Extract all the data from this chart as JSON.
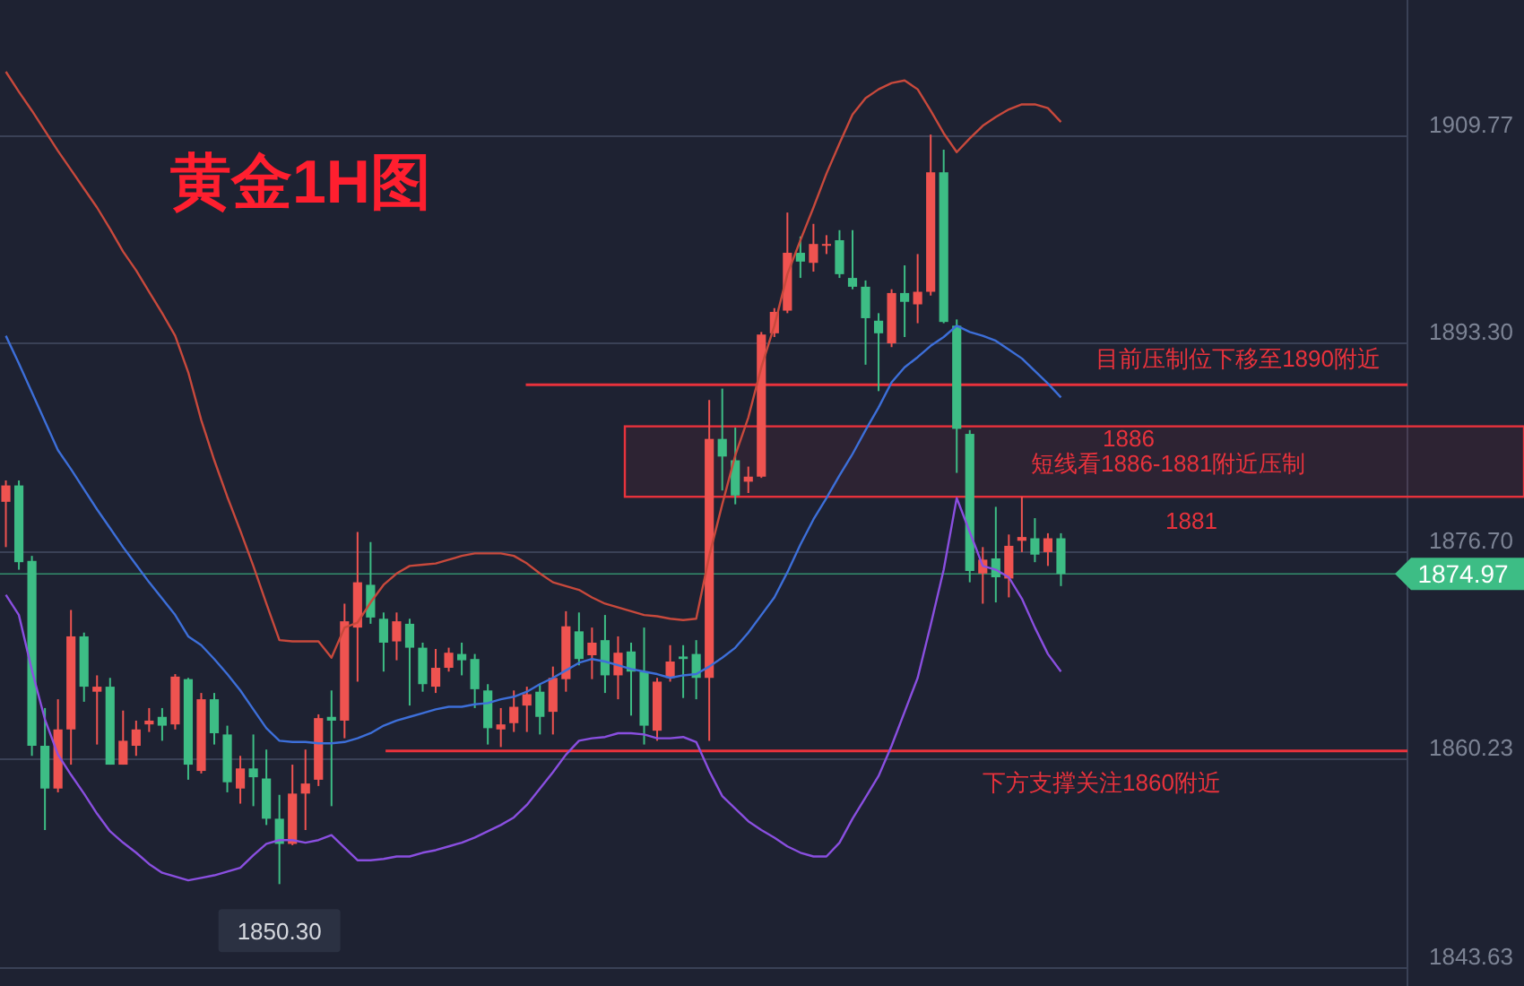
{
  "chart_data": {
    "type": "candlestick",
    "title": "黄金1H图",
    "categories": [
      null,
      null,
      null,
      null,
      null,
      null,
      null,
      null,
      null,
      null,
      null,
      null,
      null,
      null,
      null,
      null,
      null,
      null,
      null,
      null,
      null,
      null,
      null,
      null,
      null,
      null,
      null,
      null,
      null,
      null,
      null,
      null,
      null,
      null,
      null,
      null,
      null,
      null,
      null,
      null,
      null,
      null,
      null,
      null,
      null,
      null,
      null,
      null,
      null,
      null,
      null,
      null,
      null,
      null,
      null,
      null,
      null,
      null,
      null,
      null,
      null,
      null,
      null,
      null,
      null,
      null,
      null,
      null,
      null,
      null,
      null,
      null,
      null,
      null,
      null,
      null,
      null,
      null,
      null,
      null,
      null,
      null
    ],
    "ohlc": [
      [
        1880.7,
        1882.4,
        1877.1,
        1882.0
      ],
      [
        1882.0,
        1882.4,
        1875.3,
        1875.9
      ],
      [
        1876.0,
        1876.4,
        1860.5,
        1861.3
      ],
      [
        1861.3,
        1864.3,
        1854.6,
        1857.9
      ],
      [
        1857.9,
        1865.0,
        1857.6,
        1862.6
      ],
      [
        1862.6,
        1872.1,
        1859.8,
        1870.0
      ],
      [
        1870.0,
        1870.3,
        1864.8,
        1866.0
      ],
      [
        1865.6,
        1866.9,
        1861.4,
        1866.0
      ],
      [
        1866.0,
        1866.7,
        1859.8,
        1859.8
      ],
      [
        1859.8,
        1864.1,
        1859.8,
        1861.7
      ],
      [
        1861.3,
        1863.3,
        1860.5,
        1862.6
      ],
      [
        1863.0,
        1864.3,
        1862.4,
        1863.3
      ],
      [
        1863.6,
        1864.3,
        1861.7,
        1862.9
      ],
      [
        1863.0,
        1867.0,
        1862.6,
        1866.8
      ],
      [
        1866.6,
        1866.7,
        1858.6,
        1859.8
      ],
      [
        1859.3,
        1865.5,
        1859.1,
        1865.0
      ],
      [
        1865.0,
        1865.5,
        1861.4,
        1862.3
      ],
      [
        1862.2,
        1862.9,
        1857.6,
        1858.4
      ],
      [
        1857.9,
        1860.5,
        1856.7,
        1859.5
      ],
      [
        1859.5,
        1862.2,
        1856.5,
        1858.8
      ],
      [
        1858.7,
        1861.0,
        1855.0,
        1855.5
      ],
      [
        1855.5,
        1857.4,
        1850.3,
        1853.5
      ],
      [
        1853.5,
        1859.8,
        1853.4,
        1857.5
      ],
      [
        1857.5,
        1861.0,
        1854.6,
        1858.3
      ],
      [
        1858.6,
        1863.8,
        1858.1,
        1863.5
      ],
      [
        1863.6,
        1865.7,
        1856.5,
        1863.3
      ],
      [
        1863.3,
        1872.6,
        1861.9,
        1871.2
      ],
      [
        1870.7,
        1878.3,
        1866.4,
        1874.3
      ],
      [
        1874.1,
        1877.5,
        1871.0,
        1871.5
      ],
      [
        1871.4,
        1871.9,
        1867.2,
        1869.5
      ],
      [
        1869.6,
        1871.9,
        1868.1,
        1871.2
      ],
      [
        1871.0,
        1871.4,
        1864.5,
        1869.1
      ],
      [
        1869.1,
        1869.5,
        1865.6,
        1866.2
      ],
      [
        1866.0,
        1869.0,
        1865.5,
        1867.5
      ],
      [
        1867.5,
        1869.1,
        1867.2,
        1868.7
      ],
      [
        1868.6,
        1869.5,
        1866.9,
        1868.1
      ],
      [
        1868.2,
        1868.6,
        1864.3,
        1865.8
      ],
      [
        1865.7,
        1866.2,
        1861.4,
        1862.7
      ],
      [
        1862.6,
        1864.3,
        1861.2,
        1863.0
      ],
      [
        1863.1,
        1865.7,
        1862.4,
        1864.4
      ],
      [
        1864.5,
        1866.0,
        1862.4,
        1865.4
      ],
      [
        1865.6,
        1866.2,
        1862.2,
        1863.6
      ],
      [
        1864.0,
        1867.6,
        1862.2,
        1866.7
      ],
      [
        1866.6,
        1872.0,
        1865.6,
        1870.8
      ],
      [
        1870.4,
        1871.9,
        1867.7,
        1868.2
      ],
      [
        1868.5,
        1870.7,
        1866.6,
        1869.5
      ],
      [
        1869.7,
        1871.7,
        1865.5,
        1866.9
      ],
      [
        1866.9,
        1870.0,
        1865.0,
        1868.7
      ],
      [
        1868.8,
        1869.5,
        1863.7,
        1867.2
      ],
      [
        1867.2,
        1870.7,
        1861.4,
        1862.9
      ],
      [
        1862.5,
        1866.7,
        1861.7,
        1866.4
      ],
      [
        1866.7,
        1869.3,
        1866.4,
        1868.0
      ],
      [
        1868.4,
        1869.3,
        1865.1,
        1868.2
      ],
      [
        1868.6,
        1869.7,
        1865.0,
        1866.7
      ],
      [
        1866.7,
        1888.8,
        1861.7,
        1885.7
      ],
      [
        1885.7,
        1889.7,
        1881.6,
        1884.3
      ],
      [
        1884.0,
        1886.6,
        1880.5,
        1881.2
      ],
      [
        1882.3,
        1883.5,
        1881.4,
        1882.7
      ],
      [
        1882.7,
        1894.2,
        1882.6,
        1894.0
      ],
      [
        1894.1,
        1896.1,
        1893.8,
        1895.8
      ],
      [
        1895.9,
        1903.7,
        1895.7,
        1900.5
      ],
      [
        1900.5,
        1901.8,
        1898.5,
        1899.8
      ],
      [
        1899.7,
        1902.8,
        1899.0,
        1901.2
      ],
      [
        1901.1,
        1901.9,
        1900.4,
        1901.2
      ],
      [
        1901.5,
        1902.3,
        1898.5,
        1898.8
      ],
      [
        1898.5,
        1902.3,
        1897.6,
        1897.8
      ],
      [
        1897.8,
        1898.3,
        1891.6,
        1895.3
      ],
      [
        1895.1,
        1895.7,
        1889.5,
        1894.1
      ],
      [
        1893.3,
        1897.6,
        1893.0,
        1897.3
      ],
      [
        1897.3,
        1899.5,
        1893.8,
        1896.6
      ],
      [
        1896.4,
        1900.4,
        1894.9,
        1897.4
      ],
      [
        1897.4,
        1909.9,
        1897.1,
        1906.9
      ],
      [
        1906.9,
        1908.7,
        1894.9,
        1895.0
      ],
      [
        1894.7,
        1895.2,
        1883.0,
        1886.5
      ],
      [
        1886.1,
        1886.4,
        1874.3,
        1875.2
      ],
      [
        1875.0,
        1877.1,
        1872.6,
        1876.1
      ],
      [
        1876.2,
        1880.3,
        1872.7,
        1874.7
      ],
      [
        1874.6,
        1878.1,
        1873.1,
        1877.2
      ],
      [
        1877.6,
        1881.1,
        1876.7,
        1877.9
      ],
      [
        1877.8,
        1879.4,
        1875.9,
        1876.5
      ],
      [
        1876.7,
        1878.2,
        1875.6,
        1877.8
      ],
      [
        1877.8,
        1878.2,
        1874.0,
        1874.97
      ]
    ],
    "series": [
      {
        "type": "line",
        "color": "#c8493c",
        "values": [
          1914.9,
          1913.3,
          1911.8,
          1910.2,
          1908.6,
          1907.1,
          1905.6,
          1904.1,
          1902.4,
          1900.6,
          1899.1,
          1897.4,
          1895.7,
          1893.9,
          1891.0,
          1887.2,
          1884.0,
          1881.1,
          1878.4,
          1875.6,
          1872.6,
          1869.7,
          1869.6,
          1869.6,
          1869.6,
          1868.3,
          1870.7,
          1871.1,
          1872.7,
          1874.1,
          1875.0,
          1875.6,
          1875.7,
          1875.8,
          1876.1,
          1876.4,
          1876.6,
          1876.6,
          1876.6,
          1876.4,
          1875.8,
          1875.0,
          1874.3,
          1874.0,
          1873.7,
          1873.1,
          1872.6,
          1872.3,
          1872.0,
          1871.7,
          1871.6,
          1871.4,
          1871.3,
          1871.4,
          1876.4,
          1880.5,
          1884.4,
          1887.4,
          1891.4,
          1894.7,
          1898.8,
          1901.5,
          1904.1,
          1906.8,
          1909.2,
          1911.5,
          1912.8,
          1913.5,
          1914.0,
          1914.2,
          1913.5,
          1911.8,
          1910.0,
          1908.5,
          1909.6,
          1910.6,
          1911.3,
          1911.9,
          1912.3,
          1912.3,
          1912.0,
          1910.9
        ]
      },
      {
        "type": "line",
        "color": "#3d6fd9",
        "values": [
          1893.9,
          1891.7,
          1889.4,
          1887.1,
          1884.8,
          1883.3,
          1881.7,
          1880.1,
          1878.6,
          1877.1,
          1875.7,
          1874.3,
          1873.0,
          1871.7,
          1870.0,
          1869.3,
          1868.2,
          1867.0,
          1865.7,
          1864.2,
          1862.7,
          1861.7,
          1861.6,
          1861.6,
          1861.5,
          1861.5,
          1861.6,
          1861.9,
          1862.3,
          1862.9,
          1863.3,
          1863.6,
          1863.9,
          1864.2,
          1864.4,
          1864.4,
          1864.6,
          1864.7,
          1865.0,
          1865.2,
          1865.6,
          1866.2,
          1866.7,
          1867.3,
          1867.9,
          1868.2,
          1868.0,
          1867.7,
          1867.4,
          1867.2,
          1867.0,
          1866.7,
          1866.9,
          1867.0,
          1867.6,
          1868.3,
          1869.1,
          1870.3,
          1871.7,
          1873.1,
          1875.1,
          1877.3,
          1879.3,
          1881.0,
          1882.8,
          1884.5,
          1886.4,
          1888.2,
          1890.2,
          1891.4,
          1892.2,
          1893.1,
          1893.8,
          1894.7,
          1894.2,
          1893.9,
          1893.5,
          1892.8,
          1892.1,
          1891.1,
          1890.1,
          1889.0
        ]
      },
      {
        "type": "line",
        "color": "#8a4fe0",
        "values": [
          1873.3,
          1871.7,
          1867.3,
          1863.4,
          1860.6,
          1859.0,
          1857.5,
          1855.9,
          1854.5,
          1853.6,
          1852.8,
          1851.9,
          1851.2,
          1850.9,
          1850.6,
          1850.8,
          1851.0,
          1851.3,
          1851.6,
          1852.6,
          1853.5,
          1853.8,
          1853.8,
          1853.6,
          1853.8,
          1854.2,
          1853.2,
          1852.2,
          1852.2,
          1852.3,
          1852.5,
          1852.5,
          1852.8,
          1853.0,
          1853.3,
          1853.6,
          1854.0,
          1854.5,
          1855.0,
          1855.6,
          1856.6,
          1857.9,
          1859.2,
          1860.6,
          1861.7,
          1861.9,
          1862.0,
          1862.3,
          1862.3,
          1862.2,
          1861.9,
          1861.9,
          1862.0,
          1861.6,
          1859.3,
          1857.3,
          1856.3,
          1855.3,
          1854.6,
          1854.0,
          1853.3,
          1852.8,
          1852.5,
          1852.5,
          1853.6,
          1855.5,
          1857.2,
          1858.9,
          1861.3,
          1864.0,
          1866.7,
          1870.9,
          1875.3,
          1881.0,
          1878.3,
          1875.6,
          1875.3,
          1874.7,
          1873.0,
          1870.7,
          1868.6,
          1867.2
        ]
      }
    ],
    "ylim": [
      1842.2,
      1920.6
    ],
    "yticks": [
      1909.77,
      {
        "value": 1893.3,
        "label": "1893.30"
      },
      {
        "value": 1876.7,
        "label": "1876.70"
      },
      1860.23,
      1843.63
    ],
    "ref_lines": [
      {
        "axis": "y",
        "value": 1890.0,
        "label": "目前压制位下移至1890附近",
        "color": "#e8323c"
      },
      {
        "axis": "y",
        "value": 1860.9,
        "label": "下方支撑关注1860附近",
        "color": "#e8323c"
      },
      {
        "axis": "y",
        "value": 1874.97,
        "label": "1874.97",
        "color": "#3dbd85"
      }
    ],
    "bands": [
      {
        "axis": "y",
        "from": 1881.1,
        "to": 1886.7,
        "label": "短线看1886-1881附近压制",
        "color": "#e8323c"
      }
    ],
    "annotations": [
      {
        "text": "1850.30",
        "y": 1850.3
      },
      "1886",
      "1881"
    ],
    "grid": "y",
    "tick_labels": "y"
  }
}
